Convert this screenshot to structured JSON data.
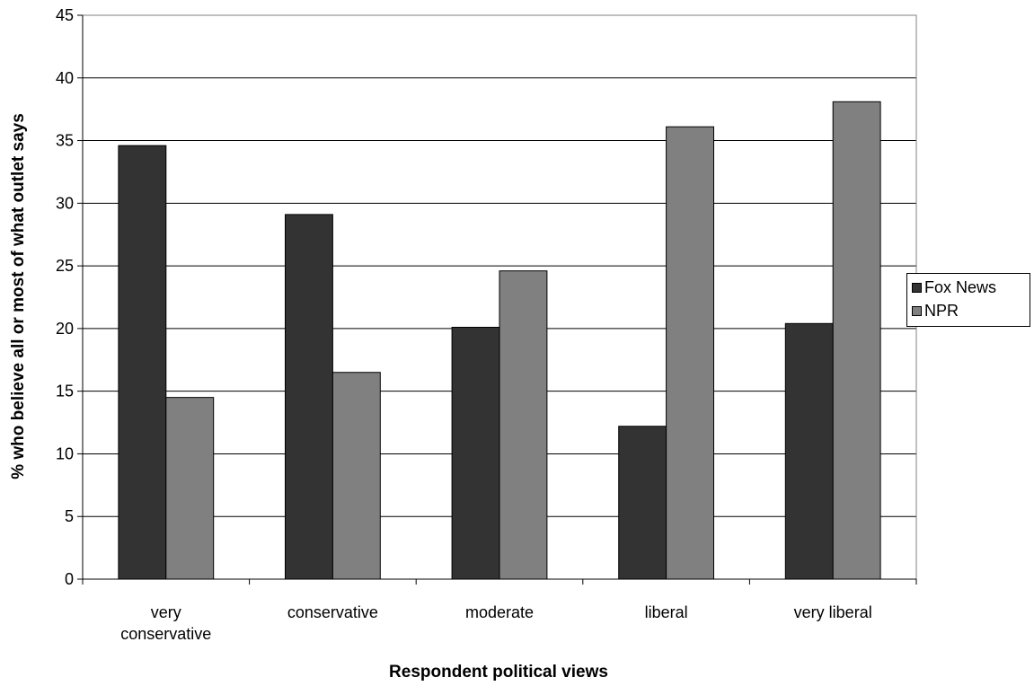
{
  "chart_data": {
    "type": "bar",
    "categories": [
      "very conservative",
      "conservative",
      "moderate",
      "liberal",
      "very liberal"
    ],
    "series": [
      {
        "name": "Fox News",
        "values": [
          34.6,
          29.1,
          20.1,
          12.2,
          20.4
        ],
        "color": "#333333"
      },
      {
        "name": "NPR",
        "values": [
          14.5,
          16.5,
          24.6,
          36.1,
          38.1
        ],
        "color": "#808080"
      }
    ],
    "title": "",
    "xlabel": "Respondent political views",
    "ylabel": "% who believe all or most of what outlet says",
    "ylim": [
      0,
      45
    ],
    "yticks": [
      0,
      5,
      10,
      15,
      20,
      25,
      30,
      35,
      40,
      45
    ],
    "grid": true,
    "legend_position": "right"
  }
}
